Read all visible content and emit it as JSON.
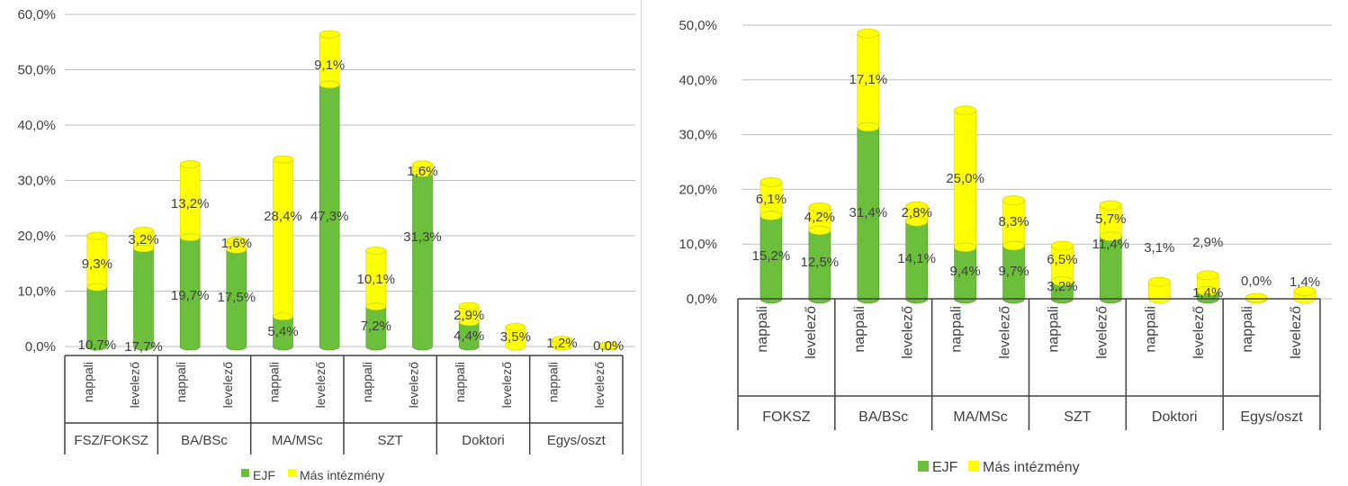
{
  "colors": {
    "ejf": "#6cbf3b",
    "ejf_dark": "#4e9a24",
    "other": "#ffff00",
    "other_dark": "#d9d000",
    "grid": "#bfbfbf",
    "axis": "#404040",
    "text": "#404040"
  },
  "chart_data": [
    {
      "type": "bar",
      "stacked": true,
      "ylim": [
        0,
        60
      ],
      "yticks": [
        "0,0%",
        "10,0%",
        "20,0%",
        "30,0%",
        "40,0%",
        "50,0%",
        "60,0%"
      ],
      "groups": [
        "FSZ/FOKSZ",
        "BA/BSc",
        "MA/MSc",
        "SZT",
        "Doktori",
        "Egys/oszt"
      ],
      "subcategories": [
        "nappali",
        "levelező"
      ],
      "series": [
        {
          "name": "EJF",
          "values": [
            10.7,
            17.7,
            19.7,
            17.5,
            5.4,
            47.3,
            7.2,
            31.3,
            4.4,
            0.0,
            0.0,
            0.0
          ],
          "labels": [
            "10,7%",
            "17,7%",
            "19,7%",
            "17,5%",
            "5,4%",
            "47,3%",
            "7,2%",
            "31,3%",
            "4,4%",
            "",
            "",
            ""
          ]
        },
        {
          "name": "Más intézmény",
          "values": [
            9.3,
            3.2,
            13.2,
            1.6,
            28.4,
            9.1,
            10.1,
            1.6,
            2.9,
            3.5,
            1.2,
            0.0
          ],
          "labels": [
            "9,3%",
            "3,2%",
            "13,2%",
            "1,6%",
            "28,4%",
            "9,1%",
            "10,1%",
            "1,6%",
            "2,9%",
            "3,5%",
            "1,2%",
            "0,0%"
          ]
        }
      ],
      "legend": "bottom"
    },
    {
      "type": "bar",
      "stacked": true,
      "ylim": [
        0,
        50
      ],
      "yticks": [
        "0,0%",
        "10,0%",
        "20,0%",
        "30,0%",
        "40,0%",
        "50,0%"
      ],
      "groups": [
        "FOKSZ",
        "BA/BSc",
        "MA/MSc",
        "SZT",
        "Doktori",
        "Egys/oszt"
      ],
      "subcategories": [
        "nappali",
        "levelező"
      ],
      "series": [
        {
          "name": "EJF",
          "values": [
            15.2,
            12.5,
            31.4,
            14.1,
            9.4,
            9.7,
            3.2,
            11.4,
            0.0,
            1.4,
            0.0,
            0.0
          ],
          "labels": [
            "15,2%",
            "12,5%",
            "31,4%",
            "14,1%",
            "9,4%",
            "9,7%",
            "3,2%",
            "11,4%",
            "",
            "1,4%",
            "",
            ""
          ]
        },
        {
          "name": "Más intézmény",
          "values": [
            6.1,
            4.2,
            17.1,
            2.8,
            25.0,
            8.3,
            6.5,
            5.7,
            3.1,
            2.9,
            0.0,
            1.4
          ],
          "labels": [
            "6,1%",
            "4,2%",
            "17,1%",
            "2,8%",
            "25,0%",
            "8,3%",
            "6,5%",
            "5,7%",
            "3,1%",
            "2,9%",
            "0,0%",
            "1,4%"
          ]
        }
      ],
      "legend": "bottom"
    }
  ]
}
